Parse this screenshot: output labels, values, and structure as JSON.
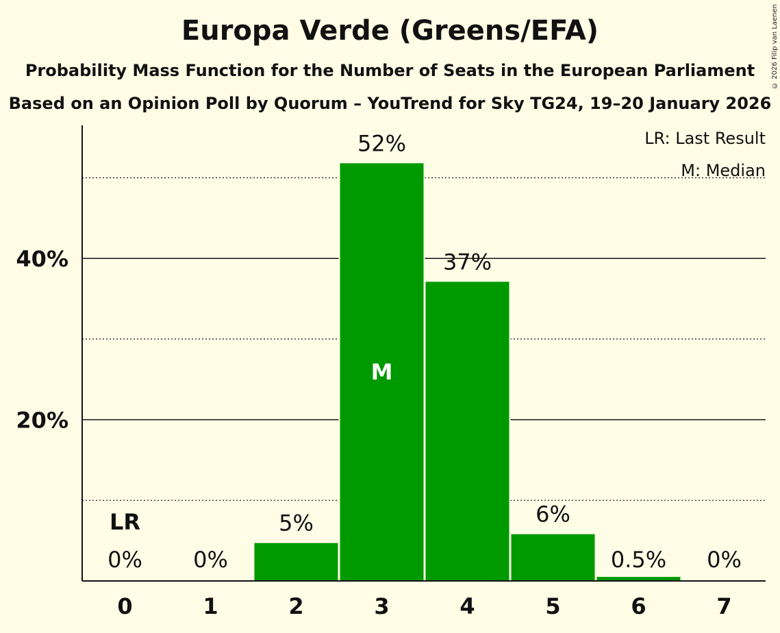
{
  "copyright": "© 2026 Filip van Laenen",
  "chart_data": {
    "type": "bar",
    "title": "Europa Verde (Greens/EFA)",
    "subtitle": "Probability Mass Function for the Number of Seats in the European Parliament",
    "source": "Based on an Opinion Poll by Quorum – YouTrend for Sky TG24, 19–20 January 2026",
    "categories": [
      "0",
      "1",
      "2",
      "3",
      "4",
      "5",
      "6",
      "7"
    ],
    "values": [
      0,
      0,
      4.7,
      51.8,
      37.1,
      5.8,
      0.5,
      0
    ],
    "value_labels": [
      "0%",
      "0%",
      "5%",
      "52%",
      "37%",
      "6%",
      "0.5%",
      "0%"
    ],
    "ylim": [
      0,
      56.5
    ],
    "yticks": [
      20,
      40
    ],
    "ytick_labels": [
      "20%",
      "40%"
    ],
    "minor_gridlines": [
      10,
      30,
      50
    ],
    "last_result_seat": "0",
    "median_seat": "3",
    "last_result_marker": "LR",
    "median_marker": "M",
    "legend": [
      "LR: Last Result",
      "M: Median"
    ],
    "legend_position": "top-right",
    "colors": {
      "bar": "#009900",
      "background": "#fffde6",
      "text": "#111111",
      "median_text": "#ffffff"
    }
  }
}
